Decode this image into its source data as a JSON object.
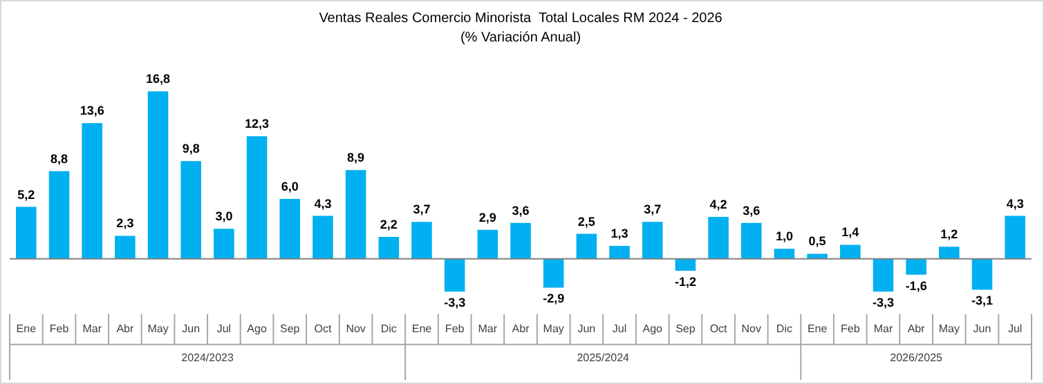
{
  "chart_data": {
    "type": "bar",
    "title": "Ventas Reales Comercio Minorista  Total Locales RM 2024 - 2026",
    "subtitle": "(% Variación Anual)",
    "categories": [
      "Ene",
      "Feb",
      "Mar",
      "Abr",
      "May",
      "Jun",
      "Jul",
      "Ago",
      "Sep",
      "Oct",
      "Nov",
      "Dic",
      "Ene",
      "Feb",
      "Mar",
      "Abr",
      "May",
      "Jun",
      "Jul",
      "Ago",
      "Sep",
      "Oct",
      "Nov",
      "Dic",
      "Ene",
      "Feb",
      "Mar",
      "Abr",
      "May",
      "Jun",
      "Jul"
    ],
    "values": [
      5.2,
      8.8,
      13.6,
      2.3,
      16.8,
      9.8,
      3.0,
      12.3,
      6.0,
      4.3,
      8.9,
      2.2,
      3.7,
      -3.3,
      2.9,
      3.6,
      -2.9,
      2.5,
      1.3,
      3.7,
      -1.2,
      4.2,
      3.6,
      1.0,
      0.5,
      1.4,
      -3.3,
      -1.6,
      1.2,
      -3.1,
      4.3
    ],
    "value_labels": [
      "5,2",
      "8,8",
      "13,6",
      "2,3",
      "16,8",
      "9,8",
      "3,0",
      "12,3",
      "6,0",
      "4,3",
      "8,9",
      "2,2",
      "3,7",
      "-3,3",
      "2,9",
      "3,6",
      "-2,9",
      "2,5",
      "1,3",
      "3,7",
      "-1,2",
      "4,2",
      "3,6",
      "1,0",
      "0,5",
      "1,4",
      "-3,3",
      "-1,6",
      "1,2",
      "-3,1",
      "4,3"
    ],
    "color": "#00b0f0",
    "annotations": [
      "2024/2023",
      "2025/2024",
      "2026/2025"
    ],
    "grid": false,
    "legend": false
  }
}
